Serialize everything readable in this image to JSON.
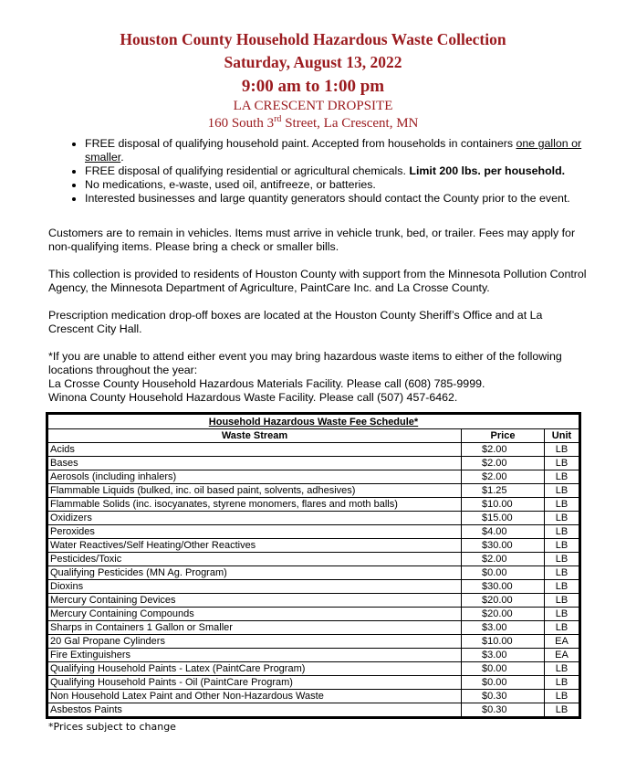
{
  "header": {
    "title": "Houston County Household Hazardous Waste Collection",
    "date": "Saturday, August 13, 2022",
    "time": "9:00 am to 1:00 pm",
    "site": "LA CRESCENT DROPSITE",
    "address_pre": "160 South 3",
    "address_sup": "rd",
    "address_post": " Street, La Crescent, MN"
  },
  "bullets": {
    "b1_pre": "FREE disposal of qualifying household paint. Accepted from households in containers ",
    "b1_u": "one gallon or smaller",
    ".b1_post": ".",
    "b2_pre": "FREE disposal of qualifying residential or agricultural chemicals. ",
    "b2_bold": "Limit 200 lbs. per household.",
    "b3": "No medications, e-waste, used oil, antifreeze, or batteries.",
    "b4": "Interested businesses and large quantity generators should contact the County prior to the event."
  },
  "paragraphs": {
    "p1": "Customers are to remain in vehicles. Items must arrive in vehicle trunk, bed, or trailer. Fees may apply for non-qualifying items. Please bring a check or smaller bills.",
    "p2": "This collection is provided to residents of Houston County with support from the Minnesota Pollution Control Agency, the Minnesota Department of Agriculture, PaintCare Inc. and La Crosse County.",
    "p3": "Prescription medication drop-off boxes are located at the Houston County Sheriff’s Office and at La Crescent City Hall.",
    "p4a": "*If you are unable to attend either event you may bring hazardous waste items to either of the following locations throughout the year:",
    "p4b": "La Crosse County Household Hazardous Materials Facility. Please call (608) 785-9999.",
    "p4c": "Winona County Household Hazardous Waste Facility. Please call (507) 457-6462."
  },
  "table": {
    "title": "Household Hazardous Waste Fee Schedule*",
    "columns": [
      "Waste Stream",
      "Price",
      "Unit"
    ],
    "rows": [
      [
        "Acids",
        "$2.00",
        "LB"
      ],
      [
        "Bases",
        "$2.00",
        "LB"
      ],
      [
        "Aerosols (including inhalers)",
        "$2.00",
        "LB"
      ],
      [
        "Flammable Liquids (bulked, inc. oil based paint, solvents, adhesives)",
        "$1.25",
        "LB"
      ],
      [
        "Flammable Solids (inc. isocyanates, styrene  monomers, flares and moth balls)",
        "$10.00",
        "LB"
      ],
      [
        "Oxidizers",
        "$15.00",
        "LB"
      ],
      [
        "Peroxides",
        "$4.00",
        "LB"
      ],
      [
        "Water Reactives/Self Heating/Other Reactives",
        "$30.00",
        "LB"
      ],
      [
        "Pesticides/Toxic",
        "$2.00",
        "LB"
      ],
      [
        "Qualifying Pesticides (MN Ag. Program)",
        "$0.00",
        "LB"
      ],
      [
        "Dioxins",
        "$30.00",
        "LB"
      ],
      [
        "Mercury Containing Devices",
        "$20.00",
        "LB"
      ],
      [
        "Mercury Containing Compounds",
        "$20.00",
        "LB"
      ],
      [
        "Sharps in Containers 1 Gallon or Smaller",
        "$3.00",
        "LB"
      ],
      [
        "20 Gal Propane Cylinders",
        "$10.00",
        "EA"
      ],
      [
        "Fire Extinguishers",
        "$3.00",
        "EA"
      ],
      [
        "Qualifying Household Paints - Latex (PaintCare Program)",
        "$0.00",
        "LB"
      ],
      [
        "Qualifying Household Paints - Oil (PaintCare Program)",
        "$0.00",
        "LB"
      ],
      [
        "Non Household Latex Paint and Other Non-Hazardous Waste",
        "$0.30",
        "LB"
      ],
      [
        "Asbestos Paints",
        "$0.30",
        "LB"
      ]
    ]
  },
  "footnote": "*Prices subject to change",
  "colors": {
    "title": "#9b1b1f"
  }
}
